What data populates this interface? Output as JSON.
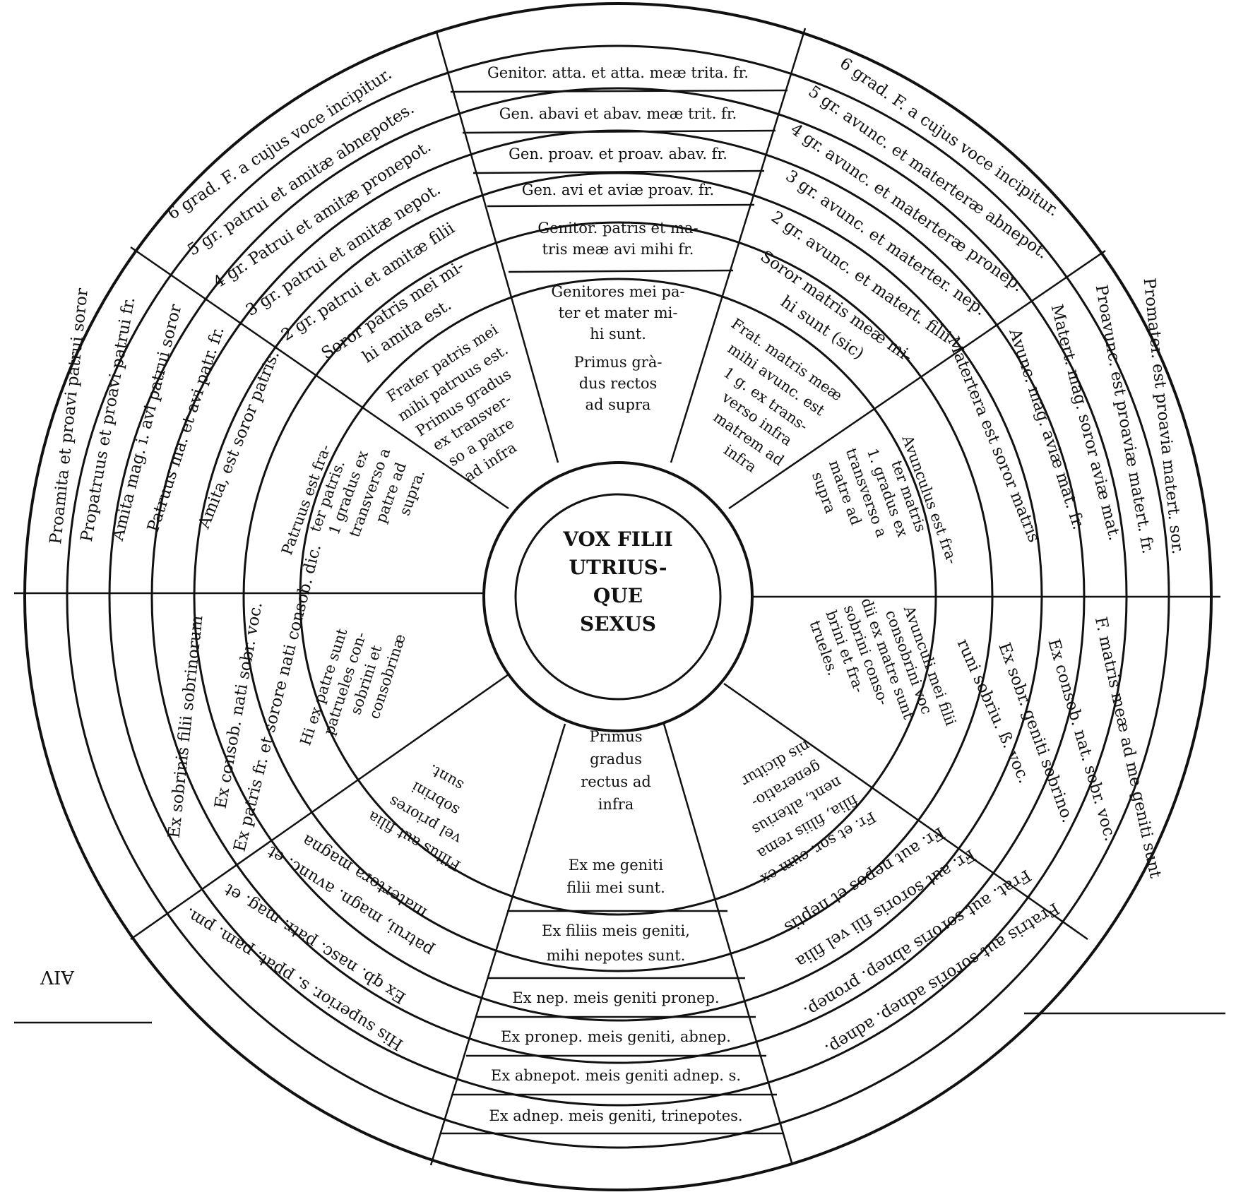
{
  "center": [
    "VOX FILII",
    "UTRIUS-",
    "QUE",
    "SEXUS"
  ],
  "top_column": [
    "Genitor. atta. et atta. meæ trita. fr.",
    "Gen. abavi et abav. meæ trit. fr.",
    "Gen. proav. et proav. abav. fr.",
    "Gen. avi et aviæ proav. fr."
  ],
  "top_inner": [
    "Genitor. patris et ma-",
    "tris meæ avi mihi fr."
  ],
  "top_core": [
    "Genitores mei pa-",
    "ter et mater mi-",
    "hi sunt.",
    "Primus grà-",
    "dus rectos",
    "ad supra"
  ],
  "bottom_column": [
    "Ex nep. meis geniti pronep.",
    "Ex pronep. meis geniti, abnep.",
    "Ex abnepot. meis geniti adnep. s.",
    "Ex adnep. meis geniti, trinepotes."
  ],
  "bottom_inner": [
    "Ex filiis meis geniti,",
    "mihi nepotes sunt."
  ],
  "bottom_core": [
    "Primus",
    "gradus",
    "rectus ad",
    "infra",
    "",
    "Ex me geniti",
    "filii mei sunt."
  ],
  "upper_left_arcs": [
    "6 grad. F. a cujus voce incipitur.",
    "5 gr. patrui et amitæ abnepotes.",
    "4 gr. Patrui et amitæ pronepot.",
    "3 gr. patrui et amitæ nepot.",
    "2 gr. patrui et amitæ filii"
  ],
  "upper_left_inner": [
    "Soror patris mei mi-",
    "hi amita est."
  ],
  "upper_left_core": [
    "Frater patris mei",
    "mihi patruus est.",
    "Primus gradus",
    "ex transver-",
    "so a patre",
    "ad infra"
  ],
  "upper_right_arcs": [
    "6 grad. F. a cujus voce incipitur.",
    "5 gr. avunc. et materteræ abnepot.",
    "4 gr. avunc. et materteræ pronep.",
    "3 gr. avunc. et materter. nep.",
    "2 gr. avunc. et matert. filii"
  ],
  "upper_right_inner": [
    "Soror matris meæ mi-",
    "hi sunt (sic)"
  ],
  "upper_right_core": [
    "Frat. matris meæ",
    "mihi avunc. est",
    "1 g. ex trans-",
    "verso infra",
    "matrem ad",
    "infra"
  ],
  "left_upper_cols": [
    "Proamita et proavi patrui soror",
    "Propatruus et proavi patrui fr.",
    "Amita mag. i. avi patrui soror",
    "Patruus ma. et avi patr. fr.",
    "Amita, est soror patris."
  ],
  "left_upper_core": [
    "Patruus est fra-",
    "ter patris.",
    "1 gradus ex",
    "transverso a",
    "patre ad",
    "supra."
  ],
  "right_upper_cols": [
    "Promater. est proavia matert. sor.",
    "Proavunc. est proaviæ matert. fr.",
    "Matert. mag. soror aviæ mat.",
    "Avunc. mag. aviæ mat. fr.",
    "Matertera est soror matris"
  ],
  "right_upper_core": [
    "Avunculus est fra-",
    "ter matris",
    "1. gradus ex",
    "transverso a",
    "matre ad",
    "supra"
  ],
  "left_lower_cols": [
    "Ex sobrinis filii sobrinorum",
    "Ex consob. nati sobr. voc.",
    "Ex patris fr. et sorore nati consob. dic."
  ],
  "left_lower_core": [
    "Hi ex patre sunt",
    "patrueles con-",
    "sobrini et",
    "consobrinæ"
  ],
  "right_lower_cols": [
    "F. matris meæ ad me geniti sunt",
    "Ex consob. nat. sobr. voc.",
    "Ex sobr. geniti sobrino.",
    "runi sobriu. ß. voc."
  ],
  "right_lower_core": [
    "Avunculi mei filii",
    "consobrini voc",
    "dii ex matre sunt",
    "sobrini conso-",
    "brini et fra-",
    "trueles."
  ],
  "lower_left_arcs": [
    "His superior. s. ppat. pam. pm.",
    "Ex qb. nasc. patr. mag. et",
    "patrui, magn. avunc. et",
    "matertera magna"
  ],
  "lower_left_core": [
    "Filius aut filia",
    "vel priores",
    "sobrini",
    "sunt."
  ],
  "lower_right_arcs": [
    "Fratris aut sororis adnep. adnep.",
    "Frat. aut sororis abnep. pronep.",
    "Fr. aut sororis fili vel filia",
    "Fr. aut nepos et neptis"
  ],
  "lower_right_core": [
    "Fr. et sor. cum ex",
    "filia, filiis rema",
    "nent, alterius",
    "generatio-",
    "nis dicitur"
  ],
  "margin": [
    "AIV"
  ]
}
